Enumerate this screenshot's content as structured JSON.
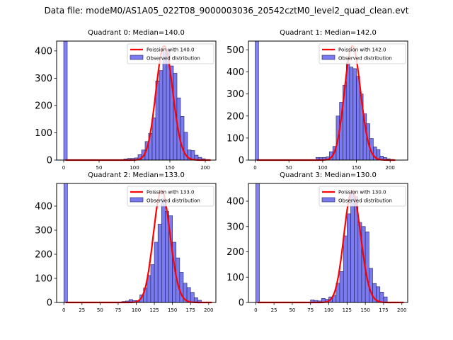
{
  "suptitle": "Data file: modeM0/AS1A05_022T08_9000003036_20542cztM0_level2_quad_clean.evt",
  "colors": {
    "bar_fill": "#7b7bf0",
    "bar_edge": "#1c1c5a",
    "poisson_line": "#ff0000"
  },
  "chart_data": [
    {
      "type": "bar",
      "title": "Quadrant 0: Median=140.0",
      "legend": [
        "Poission with 140.0",
        "Observed distribution"
      ],
      "legend_position": "top-right",
      "poisson_mean": 140.0,
      "poisson_peak": 418,
      "xlim": [
        -10,
        215
      ],
      "ylim": [
        0,
        436
      ],
      "xticks": [
        0,
        50,
        100,
        150,
        200
      ],
      "yticks": [
        0,
        100,
        200,
        300,
        400
      ],
      "bin_width": 5,
      "zero_bin": 436,
      "bins_start": [
        70,
        75,
        80,
        85,
        90,
        95,
        100,
        105,
        110,
        115,
        120,
        125,
        130,
        135,
        140,
        145,
        150,
        155,
        160,
        165,
        170,
        175,
        180,
        185,
        190,
        195,
        200
      ],
      "values": [
        1,
        1,
        2,
        4,
        6,
        6,
        8,
        20,
        37,
        68,
        98,
        155,
        290,
        328,
        395,
        405,
        345,
        318,
        228,
        160,
        102,
        37,
        35,
        18,
        10,
        5,
        2
      ]
    },
    {
      "type": "bar",
      "title": "Quadrant 1: Median=142.0",
      "legend": [
        "Poission with 142.0",
        "Observed distribution"
      ],
      "legend_position": "top-right",
      "poisson_mean": 142.0,
      "poisson_peak": 518,
      "xlim": [
        -10,
        226
      ],
      "ylim": [
        0,
        540
      ],
      "xticks": [
        0,
        50,
        100,
        150,
        200
      ],
      "yticks": [
        0,
        100,
        200,
        300,
        400,
        500
      ],
      "bin_width": 5,
      "zero_bin": 540,
      "bins_start": [
        80,
        85,
        90,
        95,
        100,
        105,
        110,
        115,
        120,
        125,
        130,
        135,
        140,
        145,
        150,
        155,
        160,
        165,
        170,
        175,
        180,
        185,
        190,
        195,
        200
      ],
      "values": [
        2,
        2,
        12,
        12,
        12,
        15,
        38,
        62,
        200,
        262,
        340,
        440,
        422,
        415,
        380,
        300,
        210,
        165,
        98,
        60,
        48,
        18,
        12,
        6,
        3
      ]
    },
    {
      "type": "bar",
      "title": "Quadrant 2: Median=133.0",
      "legend": [
        "Poission with 133.0",
        "Observed distribution"
      ],
      "legend_position": "top-right",
      "poisson_mean": 133.0,
      "poisson_peak": 465,
      "xlim": [
        -10,
        210
      ],
      "ylim": [
        0,
        494
      ],
      "xticks": [
        0,
        25,
        50,
        75,
        100,
        125,
        150,
        175,
        200
      ],
      "yticks": [
        0,
        100,
        200,
        300,
        400
      ],
      "bin_width": 5,
      "zero_bin": 494,
      "bins_start": [
        60,
        65,
        70,
        75,
        80,
        85,
        90,
        95,
        100,
        105,
        110,
        115,
        120,
        125,
        130,
        135,
        140,
        145,
        150,
        155,
        160,
        165,
        170,
        175,
        180,
        185
      ],
      "values": [
        1,
        1,
        1,
        2,
        4,
        6,
        12,
        8,
        8,
        32,
        60,
        112,
        157,
        250,
        325,
        430,
        378,
        360,
        250,
        185,
        125,
        80,
        62,
        42,
        20,
        9
      ]
    },
    {
      "type": "bar",
      "title": "Quadrant 3: Median=130.0",
      "legend": [
        "Poission with 130.0",
        "Observed distribution"
      ],
      "legend_position": "top-right",
      "poisson_mean": 130.0,
      "poisson_peak": 440,
      "xlim": [
        -10,
        208
      ],
      "ylim": [
        0,
        470
      ],
      "xticks": [
        0,
        25,
        50,
        75,
        100,
        125,
        150,
        175,
        200
      ],
      "yticks": [
        0,
        100,
        200,
        300,
        400
      ],
      "bin_width": 5,
      "zero_bin": 470,
      "bins_start": [
        55,
        60,
        65,
        70,
        75,
        80,
        85,
        90,
        95,
        100,
        105,
        110,
        115,
        120,
        125,
        130,
        135,
        140,
        145,
        150,
        155,
        160,
        165,
        170,
        175
      ],
      "values": [
        1,
        1,
        1,
        2,
        10,
        8,
        6,
        16,
        12,
        22,
        28,
        76,
        122,
        263,
        350,
        440,
        418,
        316,
        300,
        279,
        135,
        75,
        62,
        41,
        22
      ]
    }
  ]
}
